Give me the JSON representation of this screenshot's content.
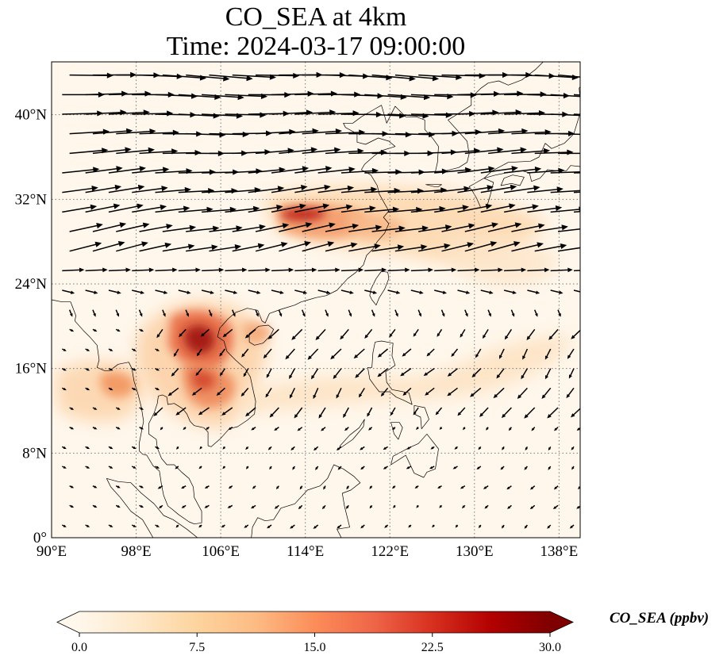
{
  "title": {
    "line1": "CO_SEA at 4km",
    "line2": "Time: 2024-03-17 09:00:00"
  },
  "map": {
    "projection": "plate-carree",
    "lon_range": [
      90,
      140
    ],
    "lat_range": [
      0,
      45
    ],
    "gridlines": "dotted",
    "x_ticks": [
      {
        "lon": 90,
        "label": "90°E"
      },
      {
        "lon": 98,
        "label": "98°E"
      },
      {
        "lon": 106,
        "label": "106°E"
      },
      {
        "lon": 114,
        "label": "114°E"
      },
      {
        "lon": 122,
        "label": "122°E"
      },
      {
        "lon": 130,
        "label": "130°E"
      },
      {
        "lon": 138,
        "label": "138°E"
      }
    ],
    "y_ticks": [
      {
        "lat": 0,
        "label": "0°"
      },
      {
        "lat": 8,
        "label": "8°N"
      },
      {
        "lat": 16,
        "label": "16°N"
      },
      {
        "lat": 24,
        "label": "24°N"
      },
      {
        "lat": 32,
        "label": "32°N"
      },
      {
        "lat": 40,
        "label": "40°N"
      }
    ],
    "co_hotspots": [
      {
        "region": "central China / Yangtze",
        "lon": 114,
        "lat": 30.5,
        "level": 24
      },
      {
        "region": "central China east",
        "lon": 118,
        "lat": 29.5,
        "level": 12
      },
      {
        "region": "northern Laos / Vietnam",
        "lon": 104,
        "lat": 18.5,
        "level": 27
      },
      {
        "region": "central Laos",
        "lon": 106,
        "lat": 16,
        "level": 18
      },
      {
        "region": "Myanmar",
        "lon": 96,
        "lat": 14.5,
        "level": 15
      },
      {
        "region": "Cambodia",
        "lon": 107,
        "lat": 13.5,
        "level": 14
      },
      {
        "region": "Hainan / Gulf of Tonkin",
        "lon": 109,
        "lat": 19.5,
        "level": 12
      }
    ],
    "wind_field": "dense black arrows; strong westerlies north of 24°N, weaker northeasterly flow over the South China Sea"
  },
  "colorbar": {
    "colormap": "OrRd",
    "colors": [
      "#fff7ec",
      "#fee8c8",
      "#fdd49e",
      "#fdbb84",
      "#fc8d59",
      "#ef6548",
      "#d7301f",
      "#b30000",
      "#7f0000"
    ],
    "ticks": [
      {
        "value": 0,
        "label": "0.0"
      },
      {
        "value": 7.5,
        "label": "7.5"
      },
      {
        "value": 15,
        "label": "15.0"
      },
      {
        "value": 22.5,
        "label": "22.5"
      },
      {
        "value": 30,
        "label": "30.0"
      }
    ],
    "range": [
      0,
      30
    ],
    "extend": "both",
    "label": "CO_SEA (ppbv)"
  }
}
